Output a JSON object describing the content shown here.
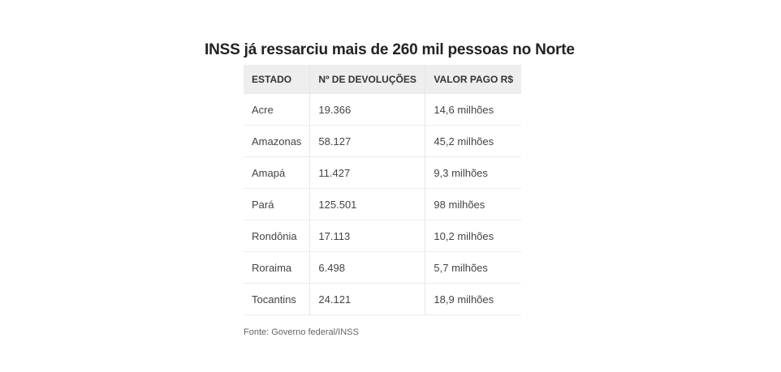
{
  "title": "INSS já ressarciu mais de 260 mil pessoas no Norte",
  "table": {
    "headers": [
      "ESTADO",
      "Nº DE DEVOLUÇÕES",
      "VALOR PAGO R$"
    ],
    "rows": [
      [
        "Acre",
        "19.366",
        "14,6 milhões"
      ],
      [
        "Amazonas",
        "58.127",
        "45,2 milhões"
      ],
      [
        "Amapá",
        "11.427",
        "9,3 milhões"
      ],
      [
        "Pará",
        "125.501",
        "98 milhões"
      ],
      [
        "Rondônia",
        "17.113",
        "10,2 milhões"
      ],
      [
        "Roraima",
        "6.498",
        "5,7 milhões"
      ],
      [
        "Tocantins",
        "24.121",
        "18,9 milhões"
      ]
    ]
  },
  "source": "Fonte: Governo federal/INSS",
  "colors": {
    "header_bg": "#eeeeee",
    "row_divider": "#ececec",
    "text": "#444444"
  }
}
